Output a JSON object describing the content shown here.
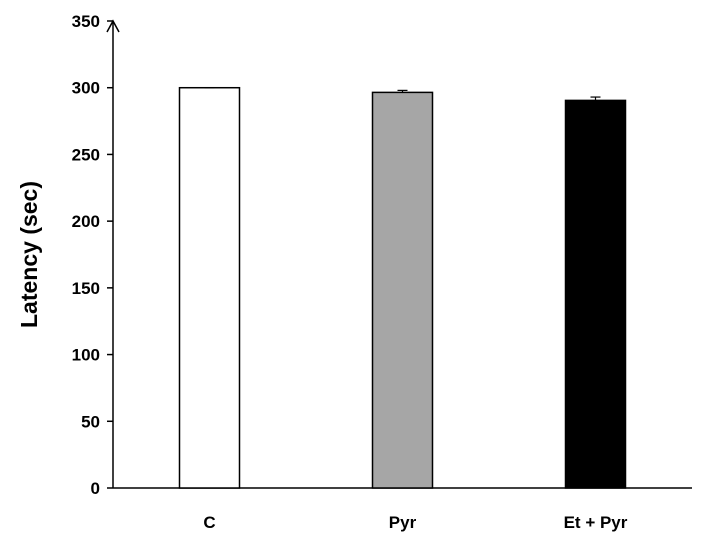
{
  "chart_data": {
    "type": "bar",
    "title": "",
    "xlabel": "",
    "ylabel": "Latency (sec)",
    "ylim": [
      0,
      350
    ],
    "yticks": [
      0,
      50,
      100,
      150,
      200,
      250,
      300,
      350
    ],
    "categories": [
      "C",
      "Pyr",
      "Et + Pyr"
    ],
    "values": [
      300,
      296.5,
      290.5
    ],
    "errors": [
      0,
      1.5,
      2.5
    ],
    "colors": [
      "#ffffff",
      "#a6a6a6",
      "#000000"
    ],
    "edge_color": "#000000",
    "grid": false,
    "legend": "none"
  }
}
